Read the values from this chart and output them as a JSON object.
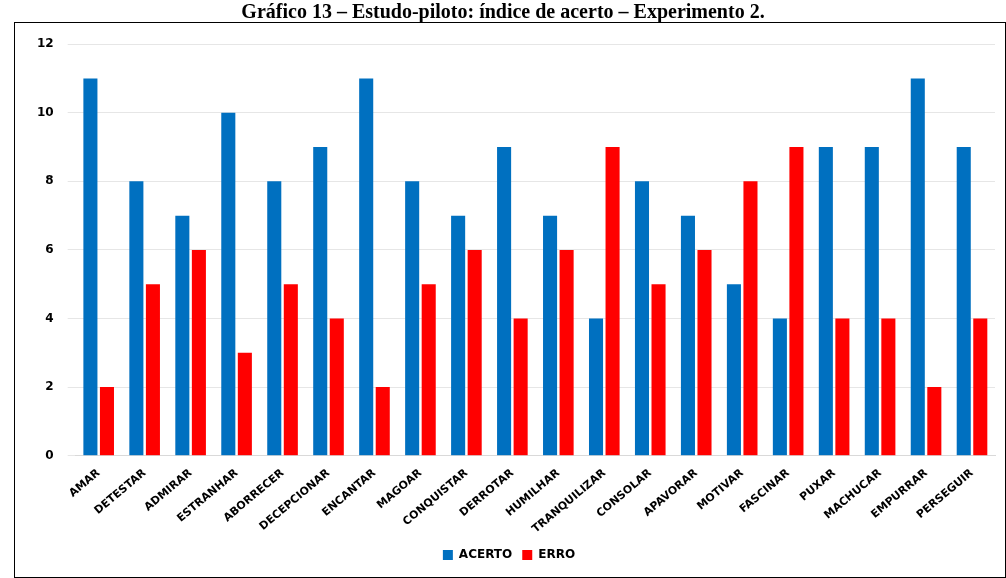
{
  "chart_data": {
    "type": "bar",
    "title": "Gráfico 13 – Estudo-piloto: índice de acerto – Experimento 2.",
    "categories": [
      "AMAR",
      "DETESTAR",
      "ADMIRAR",
      "ESTRANHAR",
      "ABORRECER",
      "DECEPCIONAR",
      "ENCANTAR",
      "MAGOAR",
      "CONQUISTAR",
      "DERROTAR",
      "HUMILHAR",
      "TRANQUILIZAR",
      "CONSOLAR",
      "APAVORAR",
      "MOTIVAR",
      "FASCINAR",
      "PUXAR",
      "MACHUCAR",
      "EMPURRAR",
      "PERSEGUIR"
    ],
    "series": [
      {
        "name": "ACERTO",
        "color": "#0070c0",
        "values": [
          11,
          8,
          7,
          10,
          8,
          9,
          11,
          8,
          7,
          9,
          7,
          4,
          8,
          7,
          5,
          4,
          9,
          9,
          11,
          9
        ]
      },
      {
        "name": "ERRO",
        "color": "#ff0000",
        "values": [
          2,
          5,
          6,
          3,
          5,
          4,
          2,
          5,
          6,
          4,
          6,
          9,
          5,
          6,
          8,
          9,
          4,
          4,
          2,
          4
        ]
      }
    ],
    "ylim": [
      0,
      12
    ],
    "yticks": [
      0,
      2,
      4,
      6,
      8,
      10,
      12
    ],
    "grid": "y",
    "legend": "bottom"
  }
}
